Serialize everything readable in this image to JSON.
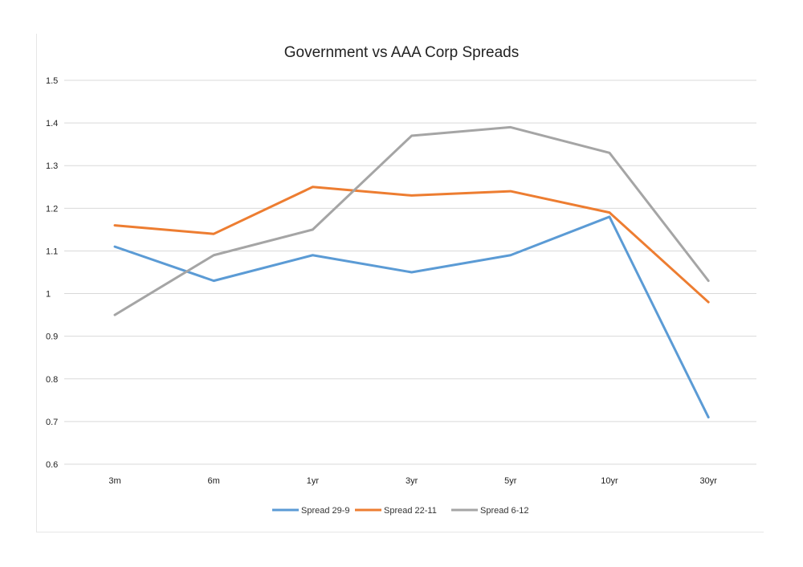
{
  "chart_data": {
    "type": "line",
    "title": "Government vs AAA Corp Spreads",
    "xlabel": "",
    "ylabel": "",
    "categories": [
      "3m",
      "6m",
      "1yr",
      "3yr",
      "5yr",
      "10yr",
      "30yr"
    ],
    "ylim": [
      0.6,
      1.5
    ],
    "yticks": [
      "0.6",
      "0.7",
      "0.8",
      "0.9",
      "1",
      "1.1",
      "1.2",
      "1.3",
      "1.4",
      "1.5"
    ],
    "grid": true,
    "legend_position": "bottom",
    "series": [
      {
        "name": "Spread 29-9",
        "color": "#5b9bd5",
        "values": [
          1.11,
          1.03,
          1.09,
          1.05,
          1.09,
          1.18,
          0.71
        ]
      },
      {
        "name": "Spread 22-11",
        "color": "#ed7d31",
        "values": [
          1.16,
          1.14,
          1.25,
          1.23,
          1.24,
          1.19,
          0.98
        ]
      },
      {
        "name": "Spread 6-12",
        "color": "#a5a5a5",
        "values": [
          0.95,
          1.09,
          1.15,
          1.37,
          1.39,
          1.33,
          1.03
        ]
      }
    ]
  }
}
